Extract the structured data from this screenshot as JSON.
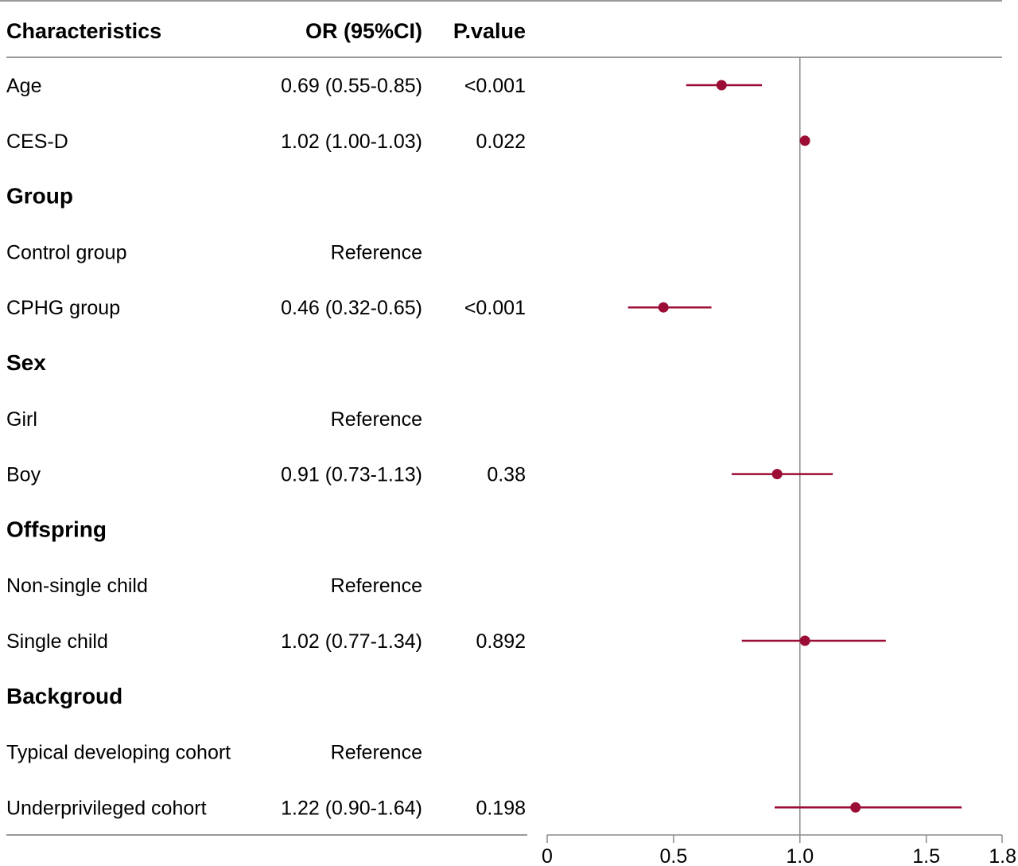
{
  "headers": {
    "characteristics": "Characteristics",
    "or": "OR (95%CI)",
    "p": "P.value"
  },
  "colors": {
    "marker": "#9b0d35",
    "rule": "#999999",
    "reference_line": "#8a8a8a"
  },
  "chart_data": {
    "type": "forest",
    "x_axis": {
      "min": 0,
      "max": 1.8,
      "ticks": [
        0,
        0.5,
        1.0,
        1.5,
        1.8
      ],
      "tick_labels": [
        "0",
        "0.5",
        "1.0",
        "1.5",
        "1.8"
      ],
      "reference_value": 1.0
    },
    "rows": [
      {
        "label": "Age",
        "kind": "item",
        "or_text": "0.69 (0.55-0.85)",
        "p_text": "<0.001",
        "or": 0.69,
        "lo": 0.55,
        "hi": 0.85
      },
      {
        "label": "CES-D",
        "kind": "item",
        "or_text": "1.02 (1.00-1.03)",
        "p_text": "0.022",
        "or": 1.02,
        "lo": 1.0,
        "hi": 1.03
      },
      {
        "label": "Group",
        "kind": "group"
      },
      {
        "label": "Control group",
        "kind": "item",
        "or_text": "Reference",
        "p_text": ""
      },
      {
        "label": "CPHG group",
        "kind": "item",
        "or_text": "0.46 (0.32-0.65)",
        "p_text": "<0.001",
        "or": 0.46,
        "lo": 0.32,
        "hi": 0.65
      },
      {
        "label": "Sex",
        "kind": "group"
      },
      {
        "label": "Girl",
        "kind": "item",
        "or_text": "Reference",
        "p_text": ""
      },
      {
        "label": "Boy",
        "kind": "item",
        "or_text": "0.91 (0.73-1.13)",
        "p_text": "0.38",
        "or": 0.91,
        "lo": 0.73,
        "hi": 1.13
      },
      {
        "label": "Offspring",
        "kind": "group"
      },
      {
        "label": "Non-single child",
        "kind": "item",
        "or_text": "Reference",
        "p_text": ""
      },
      {
        "label": "Single child",
        "kind": "item",
        "or_text": "1.02 (0.77-1.34)",
        "p_text": "0.892",
        "or": 1.02,
        "lo": 0.77,
        "hi": 1.34
      },
      {
        "label": "Backgroud",
        "kind": "group"
      },
      {
        "label": "Typical developing cohort",
        "kind": "item",
        "or_text": "Reference",
        "p_text": ""
      },
      {
        "label": "Underprivileged cohort",
        "kind": "item",
        "or_text": "1.22 (0.90-1.64)",
        "p_text": "0.198",
        "or": 1.22,
        "lo": 0.9,
        "hi": 1.64
      }
    ]
  }
}
